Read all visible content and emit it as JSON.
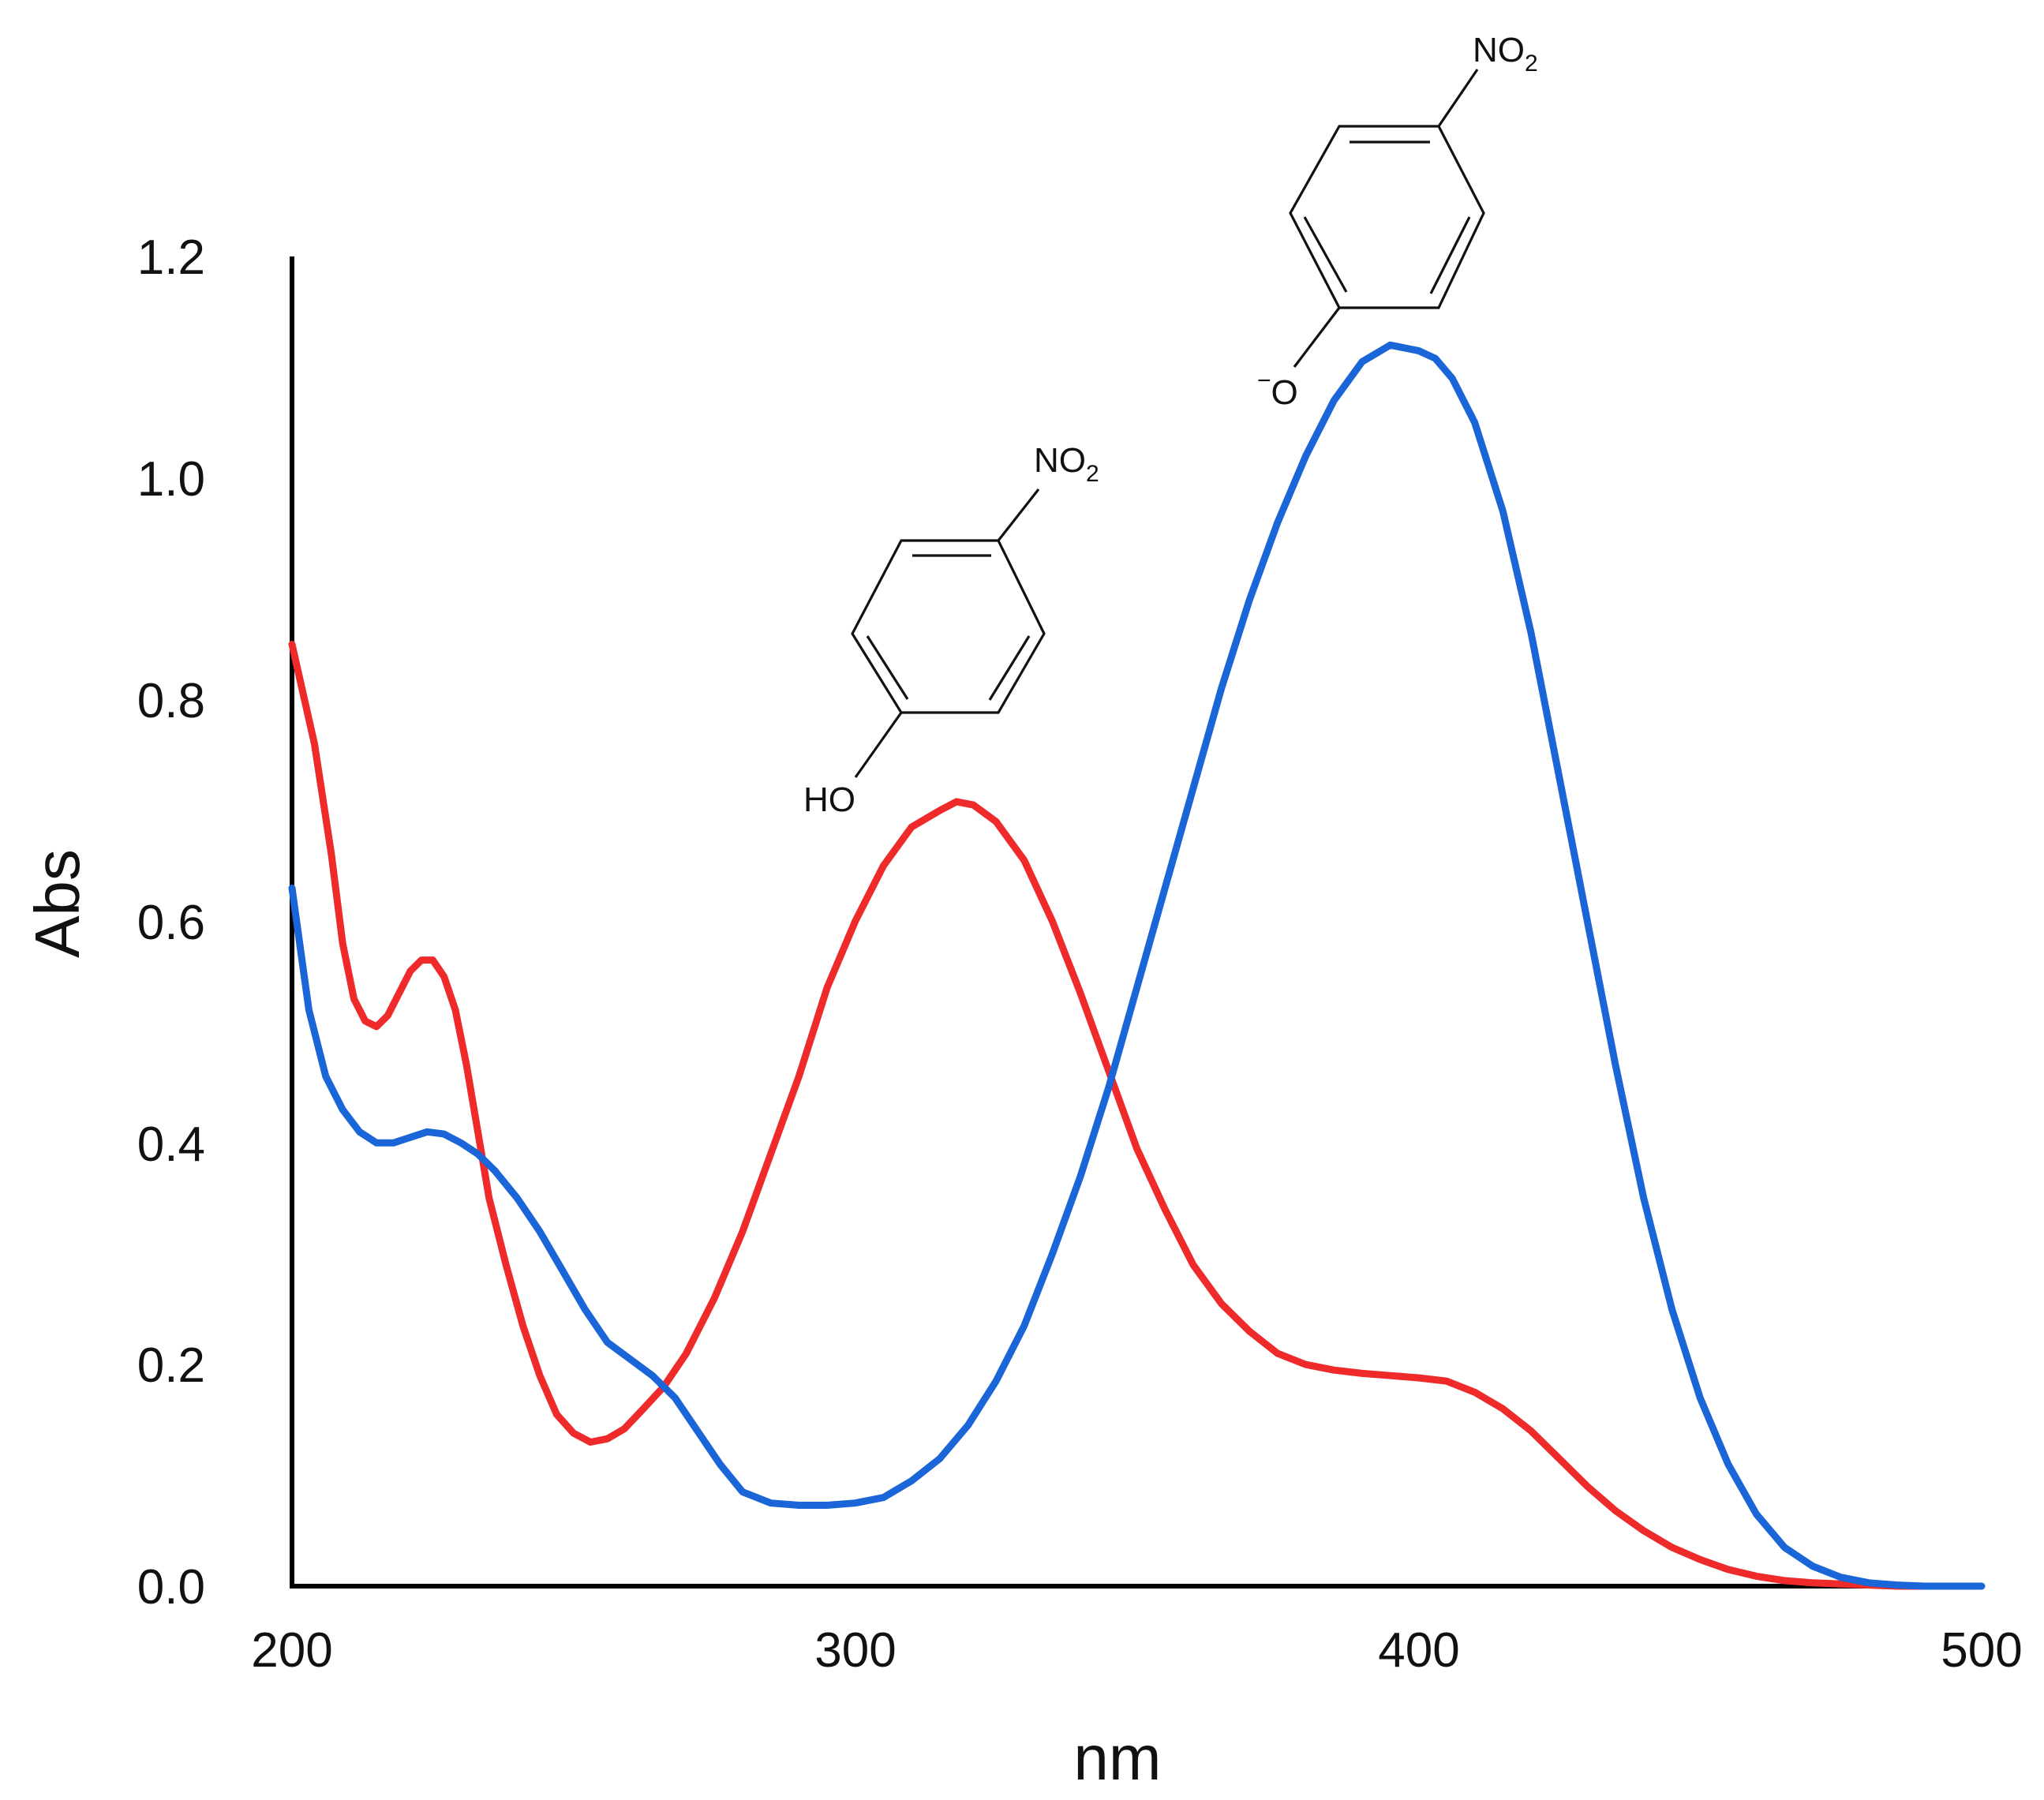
{
  "chart_data": {
    "type": "line",
    "xlabel": "nm",
    "ylabel": "Abs",
    "xlim": [
      200,
      500
    ],
    "ylim": [
      0,
      1.2
    ],
    "xticks": [
      "200",
      "300",
      "400",
      "500"
    ],
    "yticks": [
      "0.0",
      "0.2",
      "0.4",
      "0.6",
      "0.8",
      "1.0",
      "1.2"
    ],
    "grid": false,
    "series": [
      {
        "color": "#ee2a2a",
        "x": [
          200,
          204,
          207,
          209,
          211,
          213,
          215,
          217,
          219,
          221,
          223,
          225,
          227,
          229,
          231,
          233,
          235,
          238,
          241,
          244,
          247,
          250,
          253,
          256,
          259,
          262,
          266,
          270,
          275,
          280,
          285,
          290,
          295,
          300,
          305,
          310,
          315,
          318,
          321,
          325,
          330,
          335,
          340,
          345,
          350,
          355,
          360,
          365,
          370,
          375,
          380,
          385,
          390,
          395,
          400,
          405,
          410,
          415,
          420,
          425,
          430,
          435,
          440,
          445,
          450,
          455,
          460,
          465,
          470,
          475,
          480,
          485,
          490
        ],
        "y": [
          0.85,
          0.76,
          0.66,
          0.58,
          0.53,
          0.51,
          0.505,
          0.515,
          0.535,
          0.555,
          0.565,
          0.565,
          0.55,
          0.52,
          0.47,
          0.41,
          0.35,
          0.29,
          0.235,
          0.19,
          0.155,
          0.138,
          0.13,
          0.133,
          0.142,
          0.158,
          0.18,
          0.21,
          0.26,
          0.32,
          0.39,
          0.46,
          0.54,
          0.6,
          0.65,
          0.685,
          0.7,
          0.708,
          0.705,
          0.69,
          0.655,
          0.6,
          0.535,
          0.465,
          0.395,
          0.34,
          0.29,
          0.255,
          0.23,
          0.21,
          0.2,
          0.195,
          0.192,
          0.19,
          0.188,
          0.185,
          0.175,
          0.16,
          0.14,
          0.115,
          0.09,
          0.068,
          0.05,
          0.035,
          0.024,
          0.015,
          0.009,
          0.005,
          0.003,
          0.002,
          0.001,
          0.0,
          0.0
        ]
      },
      {
        "color": "#1a66d8",
        "x": [
          200,
          203,
          206,
          209,
          212,
          215,
          218,
          221,
          224,
          227,
          230,
          233,
          236,
          240,
          244,
          248,
          252,
          256,
          260,
          264,
          268,
          272,
          276,
          280,
          285,
          290,
          295,
          300,
          305,
          310,
          315,
          320,
          325,
          330,
          335,
          340,
          345,
          350,
          355,
          360,
          365,
          370,
          375,
          380,
          385,
          390,
          395,
          400,
          403,
          406,
          410,
          415,
          420,
          425,
          430,
          435,
          440,
          445,
          450,
          455,
          460,
          465,
          470,
          475,
          480,
          485,
          490,
          495,
          500
        ],
        "y": [
          0.63,
          0.52,
          0.46,
          0.43,
          0.41,
          0.4,
          0.4,
          0.405,
          0.41,
          0.408,
          0.4,
          0.39,
          0.375,
          0.35,
          0.32,
          0.285,
          0.25,
          0.22,
          0.205,
          0.19,
          0.17,
          0.14,
          0.11,
          0.085,
          0.075,
          0.073,
          0.073,
          0.075,
          0.08,
          0.095,
          0.115,
          0.145,
          0.185,
          0.235,
          0.3,
          0.37,
          0.45,
          0.54,
          0.63,
          0.72,
          0.81,
          0.89,
          0.96,
          1.02,
          1.07,
          1.105,
          1.12,
          1.115,
          1.108,
          1.09,
          1.05,
          0.97,
          0.86,
          0.73,
          0.6,
          0.47,
          0.35,
          0.25,
          0.17,
          0.11,
          0.065,
          0.035,
          0.018,
          0.008,
          0.003,
          0.001,
          0.0,
          0.0,
          0.0
        ]
      }
    ],
    "annotations": [
      {
        "top_group": "NO",
        "top_sub": "2",
        "bottom": "HO"
      },
      {
        "top_group": "NO",
        "top_sub": "2",
        "bottom_charge": "−",
        "bottom": "O"
      }
    ]
  }
}
